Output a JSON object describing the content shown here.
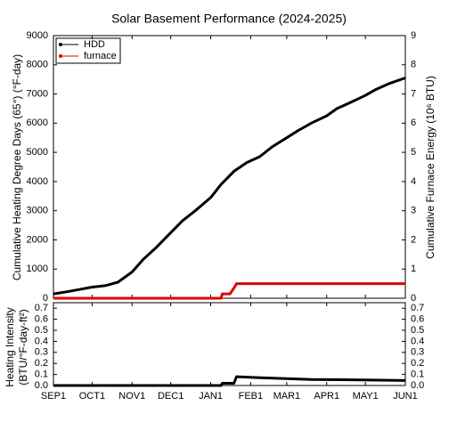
{
  "chart_data": [
    {
      "type": "line",
      "title": "Solar Basement Performance (2024-2025)",
      "ylabel": "Cumulative Heating Degree Days (65°) (°F-day)",
      "y2label": "Cumulative Furnace Energy (10⁶ BTU)",
      "ylim": [
        0,
        9000
      ],
      "yticks": [
        0,
        1000,
        2000,
        3000,
        4000,
        5000,
        6000,
        7000,
        8000,
        9000
      ],
      "y2lim": [
        0,
        9
      ],
      "y2ticks": [
        0,
        1,
        2,
        3,
        4,
        5,
        6,
        7,
        8,
        9
      ],
      "legend": "upper left",
      "series": [
        {
          "name": "HDD",
          "color": "#000000",
          "x": [
            0,
            10,
            20,
            30,
            40,
            50,
            61,
            70,
            80,
            91,
            100,
            110,
            122,
            130,
            140,
            150,
            160,
            170,
            181,
            190,
            200,
            212,
            220,
            230,
            242,
            250,
            260,
            273
          ],
          "values": [
            150,
            220,
            300,
            380,
            430,
            550,
            900,
            1350,
            1750,
            2250,
            2650,
            3000,
            3450,
            3900,
            4350,
            4650,
            4850,
            5200,
            5500,
            5750,
            6000,
            6250,
            6500,
            6700,
            6950,
            7150,
            7350,
            7550
          ]
        },
        {
          "name": "furnace",
          "color": "#e00000",
          "axis": "y2",
          "x": [
            0,
            60,
            120,
            130,
            131,
            137,
            140,
            142,
            160,
            200,
            240,
            273
          ],
          "values": [
            0,
            0,
            0,
            0,
            0.15,
            0.15,
            0.35,
            0.5,
            0.5,
            0.5,
            0.5,
            0.5
          ]
        }
      ]
    },
    {
      "type": "line",
      "ylabel": "Heating Intensity",
      "ylabel2": "(BTU/°F-day-ft²)",
      "xlim": [
        0,
        273
      ],
      "xticks": [
        {
          "value": 0,
          "label": "SEP1"
        },
        {
          "value": 30,
          "label": "OCT1"
        },
        {
          "value": 61,
          "label": "NOV1"
        },
        {
          "value": 91,
          "label": "DEC1"
        },
        {
          "value": 122,
          "label": "JAN1"
        },
        {
          "value": 153,
          "label": "FEB1"
        },
        {
          "value": 181,
          "label": "MAR1"
        },
        {
          "value": 212,
          "label": "APR1"
        },
        {
          "value": 242,
          "label": "MAY1"
        },
        {
          "value": 273,
          "label": "JUN1"
        }
      ],
      "ylim": [
        0,
        0.75
      ],
      "yticks": [
        {
          "value": 0,
          "label": "0.0"
        },
        0.1,
        0.2,
        0.3,
        0.4,
        0.5,
        0.6,
        0.7
      ],
      "y2lim": [
        0,
        0.75
      ],
      "y2ticks": [
        {
          "value": 0,
          "label": "0.0"
        },
        0.1,
        0.2,
        0.3,
        0.4,
        0.5,
        0.6,
        0.7
      ],
      "series": [
        {
          "color": "#000000",
          "x": [
            0,
            60,
            130,
            131,
            140,
            142,
            160,
            200,
            240,
            273
          ],
          "values": [
            0,
            0,
            0,
            0.02,
            0.02,
            0.08,
            0.07,
            0.055,
            0.05,
            0.045
          ]
        }
      ]
    }
  ]
}
